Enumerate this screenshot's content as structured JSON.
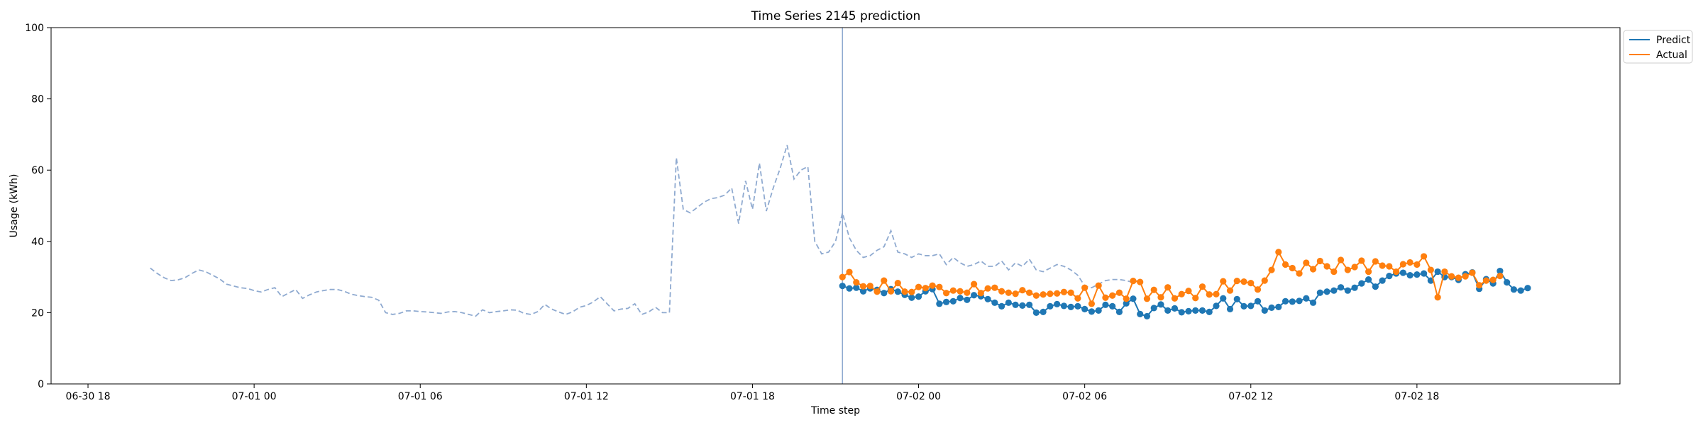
{
  "chart_data": {
    "type": "line",
    "title": "Time Series 2145 prediction",
    "xlabel": "Time step",
    "ylabel": "Usage (kWh)",
    "ylim": [
      0,
      100
    ],
    "xlim": [
      "2024-06-30T16:40",
      "2024-07-03T01:20"
    ],
    "yticks": [
      0,
      20,
      40,
      60,
      80,
      100
    ],
    "xticks": [
      {
        "value": "2024-06-30T18:00",
        "label": "06-30 18"
      },
      {
        "value": "2024-07-01T00:00",
        "label": "07-01 00"
      },
      {
        "value": "2024-07-01T06:00",
        "label": "07-01 06"
      },
      {
        "value": "2024-07-01T12:00",
        "label": "07-01 12"
      },
      {
        "value": "2024-07-01T18:00",
        "label": "07-01 18"
      },
      {
        "value": "2024-07-02T00:00",
        "label": "07-02 00"
      },
      {
        "value": "2024-07-02T06:00",
        "label": "07-02 06"
      },
      {
        "value": "2024-07-02T12:00",
        "label": "07-02 12"
      },
      {
        "value": "2024-07-02T18:00",
        "label": "07-02 18"
      }
    ],
    "step_minutes": 15,
    "grid": false,
    "legend_position": "top-right",
    "forecast_start": "2024-07-01T21:15",
    "colors": {
      "history": "#8faad0",
      "predict": "#1f77b4",
      "actual": "#ff7f0e",
      "vline": "#8faad0"
    },
    "series": [
      {
        "name": "",
        "key": "history",
        "style": "dashed",
        "start": "2024-06-30T20:15",
        "values": [
          32.5,
          31.0,
          29.8,
          29.0,
          29.2,
          29.8,
          31.0,
          32.0,
          31.5,
          30.5,
          29.5,
          28.0,
          27.5,
          27.0,
          26.8,
          26.2,
          25.8,
          26.5,
          27.0,
          24.5,
          25.5,
          26.5,
          24.0,
          25.0,
          25.8,
          26.2,
          26.5,
          26.5,
          26.0,
          25.2,
          24.8,
          24.5,
          24.3,
          23.5,
          20.0,
          19.5,
          19.8,
          20.5,
          20.5,
          20.3,
          20.2,
          20.0,
          19.8,
          20.2,
          20.3,
          20.0,
          19.5,
          19.0,
          20.8,
          20.0,
          20.3,
          20.5,
          20.8,
          20.7,
          19.8,
          19.5,
          20.3,
          22.3,
          21.0,
          20.2,
          19.5,
          20.2,
          21.5,
          22.0,
          23.0,
          24.5,
          22.5,
          20.5,
          21.0,
          21.2,
          22.5,
          19.5,
          20.2,
          21.5,
          20.0,
          20.0,
          63.5,
          49.0,
          48.0,
          49.5,
          51.0,
          52.0,
          52.3,
          53.0,
          55.0,
          45.0,
          57.0,
          49.0,
          62.0,
          48.5,
          55.0,
          60.5,
          67.0,
          57.5,
          60.0,
          61.0,
          40.0,
          36.5,
          37.0,
          40.0,
          48.0,
          41.0,
          37.5,
          35.5,
          36.0,
          37.5,
          38.5,
          43.0,
          37.0,
          36.5,
          35.5,
          36.5,
          36.0,
          36.0,
          36.5,
          33.5,
          35.5,
          34.0,
          33.0,
          33.5,
          34.5,
          33.0,
          33.0,
          34.5,
          32.0,
          34.0,
          33.0,
          35.0,
          32.0,
          31.5,
          32.5,
          33.5,
          33.0,
          32.0,
          30.5,
          27.5,
          27.0,
          28.0,
          29.0,
          29.3,
          29.3,
          29.0,
          28.5,
          29.2
        ]
      },
      {
        "name": "Predict",
        "key": "predict",
        "style": "solid",
        "markers": true,
        "start": "2024-07-01T21:15",
        "values": [
          27.5,
          26.8,
          27.0,
          26.0,
          26.8,
          26.4,
          25.5,
          26.6,
          25.9,
          25.0,
          24.2,
          24.5,
          26.0,
          26.6,
          22.5,
          23.0,
          23.2,
          24.1,
          23.6,
          24.9,
          24.6,
          23.8,
          22.8,
          21.8,
          22.8,
          22.2,
          22.0,
          22.2,
          20.0,
          20.2,
          21.8,
          22.4,
          21.9,
          21.6,
          21.8,
          21.0,
          20.3,
          20.6,
          22.2,
          21.8,
          20.2,
          22.6,
          23.9,
          19.6,
          19.0,
          21.3,
          22.3,
          20.6,
          21.2,
          20.1,
          20.4,
          20.6,
          20.6,
          20.2,
          21.9,
          24.0,
          21.0,
          23.8,
          21.8,
          21.9,
          23.2,
          20.6,
          21.4,
          21.6,
          23.2,
          23.1,
          23.3,
          24.0,
          22.8,
          25.6,
          25.9,
          26.2,
          27.1,
          26.2,
          27.0,
          28.2,
          29.3,
          27.3,
          29.0,
          30.3,
          31.0,
          31.2,
          30.5,
          30.7,
          31.0,
          29.0,
          31.5,
          30.0,
          30.0,
          29.2,
          30.8,
          31.3,
          26.7,
          29.4,
          28.2,
          31.7,
          28.5,
          26.5,
          26.2,
          26.9
        ]
      },
      {
        "name": "Actual",
        "key": "actual",
        "style": "solid",
        "markers": true,
        "start": "2024-07-01T21:15",
        "values": [
          30.0,
          31.4,
          28.5,
          27.4,
          27.5,
          25.9,
          29.0,
          26.0,
          28.3,
          25.9,
          25.8,
          27.2,
          26.9,
          27.6,
          27.2,
          25.5,
          26.2,
          26.0,
          25.6,
          28.0,
          25.5,
          26.8,
          27.0,
          26.0,
          25.6,
          25.3,
          26.3,
          25.6,
          24.8,
          25.1,
          25.3,
          25.4,
          25.8,
          25.6,
          24.0,
          27.0,
          22.5,
          27.6,
          24.2,
          24.8,
          25.6,
          23.9,
          28.9,
          28.6,
          23.9,
          26.4,
          24.3,
          27.1,
          24.0,
          25.2,
          26.1,
          24.1,
          27.3,
          25.1,
          25.2,
          28.8,
          26.2,
          28.9,
          28.7,
          28.3,
          26.5,
          29.0,
          32.0,
          37.0,
          33.5,
          32.5,
          31.0,
          34.0,
          32.2,
          34.5,
          33.0,
          31.5,
          34.8,
          32.0,
          32.8,
          34.6,
          31.5,
          34.4,
          33.2,
          33.0,
          31.5,
          33.6,
          34.1,
          33.5,
          35.8,
          32.0,
          24.3,
          31.5,
          30.2,
          29.8,
          30.2,
          31.2,
          27.7,
          29.0,
          29.2,
          30.3
        ]
      }
    ]
  }
}
